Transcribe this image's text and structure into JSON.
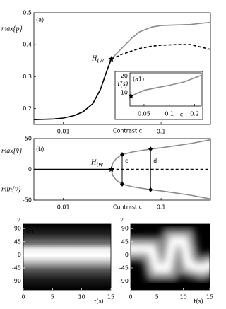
{
  "chart_data": [
    {
      "type": "line",
      "label": "(a)",
      "ylabel": "max{p}",
      "xlabel": "Contrast c",
      "xscale": "log",
      "xlim": [
        0.005,
        0.32
      ],
      "xticks": [
        0.01,
        0.1
      ],
      "ylim": [
        0.15,
        0.5
      ],
      "yticks": [
        0.2,
        0.3,
        0.4,
        0.5
      ],
      "annotation": "H",
      "annotation_sub": "tw",
      "star": {
        "x": 0.031,
        "y": 0.355
      },
      "series": [
        {
          "color": "#000000",
          "style": "solid",
          "x": [
            0.005,
            0.008,
            0.01,
            0.013,
            0.016,
            0.02,
            0.024,
            0.028,
            0.031
          ],
          "values": [
            0.165,
            0.167,
            0.17,
            0.178,
            0.19,
            0.215,
            0.26,
            0.32,
            0.355
          ]
        },
        {
          "color": "#8c8c8c",
          "style": "solid",
          "x": [
            0.031,
            0.035,
            0.04,
            0.05,
            0.06,
            0.08,
            0.1,
            0.15,
            0.2,
            0.32
          ],
          "values": [
            0.355,
            0.372,
            0.39,
            0.42,
            0.44,
            0.455,
            0.46,
            0.462,
            0.463,
            0.47
          ]
        },
        {
          "color": "#000000",
          "style": "dashed",
          "x": [
            0.031,
            0.035,
            0.04,
            0.05,
            0.06,
            0.08,
            0.1,
            0.15,
            0.2,
            0.32
          ],
          "values": [
            0.355,
            0.362,
            0.37,
            0.38,
            0.388,
            0.395,
            0.398,
            0.4,
            0.4,
            0.385
          ]
        }
      ]
    },
    {
      "type": "line",
      "label": "(a1)",
      "ylabel": "T(s)",
      "xlabel": "c",
      "xscale": "log",
      "xlim": [
        0.034,
        0.24
      ],
      "xticks": [
        0.05,
        0.1,
        0.2
      ],
      "ylim": [
        2,
        22
      ],
      "yticks": [
        10,
        20
      ],
      "star": {
        "x": 0.035,
        "y": 8
      },
      "series": [
        {
          "color": "#8c8c8c",
          "style": "solid",
          "x": [
            0.035,
            0.05,
            0.07,
            0.1,
            0.15,
            0.2,
            0.24
          ],
          "values": [
            8,
            11.5,
            13,
            14.5,
            16.5,
            19,
            20.5
          ]
        }
      ]
    },
    {
      "type": "line",
      "label": "(b)",
      "ylabels": [
        "max{v̄}",
        "min{v̄}"
      ],
      "xlabel": "Contrast c",
      "xscale": "log",
      "xlim": [
        0.005,
        0.32
      ],
      "xticks": [
        0.01,
        0.1
      ],
      "ylim": [
        -50,
        50
      ],
      "yticks": [
        -50,
        0,
        50
      ],
      "annotation": "H",
      "annotation_sub": "tw",
      "star": {
        "x": 0.031,
        "y": 0
      },
      "cuts": [
        {
          "label": "c",
          "x": 0.04,
          "max": 24,
          "min": -24
        },
        {
          "label": "d",
          "x": 0.078,
          "max": 33,
          "min": -33
        }
      ],
      "series": [
        {
          "color": "#000000",
          "style": "solid",
          "x": [
            0.005,
            0.031
          ],
          "values": [
            0,
            0
          ]
        },
        {
          "color": "#000000",
          "style": "dashed",
          "x": [
            0.031,
            0.32
          ],
          "values": [
            0,
            0
          ]
        },
        {
          "color": "#8c8c8c",
          "style": "solid",
          "x": [
            0.031,
            0.032,
            0.035,
            0.04,
            0.05,
            0.078,
            0.1,
            0.2,
            0.32
          ],
          "values": [
            0,
            10,
            18,
            24,
            28,
            33,
            35,
            42,
            48
          ]
        },
        {
          "color": "#8c8c8c",
          "style": "solid",
          "x": [
            0.031,
            0.032,
            0.035,
            0.04,
            0.05,
            0.078,
            0.1,
            0.2,
            0.32
          ],
          "values": [
            0,
            -10,
            -18,
            -24,
            -28,
            -33,
            -35,
            -42,
            -48
          ]
        }
      ]
    },
    {
      "type": "heatmap",
      "label": "(c)",
      "ylabel": "v",
      "xlabel": "t(s)",
      "xlim": [
        0,
        15
      ],
      "xticks": [
        0,
        5,
        10,
        15
      ],
      "ylim": [
        -120,
        105
      ],
      "yticks": [
        90,
        45,
        0,
        -45,
        -90
      ]
    },
    {
      "type": "heatmap",
      "label": "(d)",
      "ylabel": "v",
      "xlabel": "t(s)",
      "xlim": [
        0,
        15
      ],
      "xticks": [
        0,
        5,
        10,
        15
      ],
      "ylim": [
        -120,
        105
      ],
      "yticks": [
        90,
        45,
        0,
        -45,
        -90
      ]
    }
  ]
}
